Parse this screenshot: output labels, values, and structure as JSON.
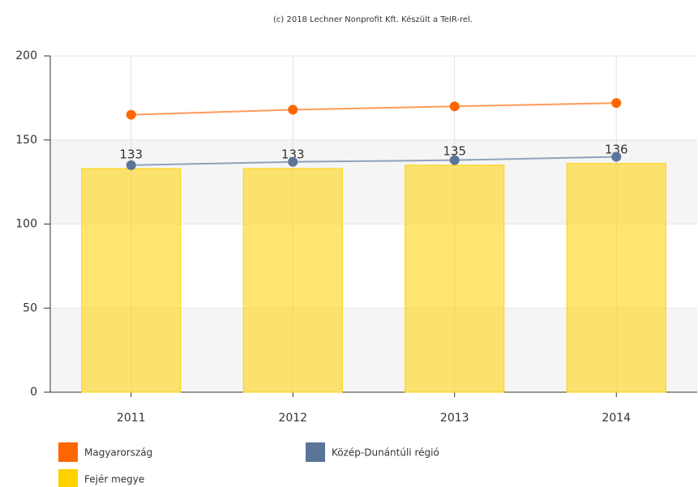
{
  "chart_data": {
    "type": "bar",
    "credit": "(c) 2018 Lechner Nonprofit Kft. Készült a TeIR-rel.",
    "categories": [
      "2011",
      "2012",
      "2013",
      "2014"
    ],
    "series": [
      {
        "name": "Magyarország",
        "type": "line",
        "color": "#ff6600",
        "values": [
          165,
          168,
          170,
          172
        ]
      },
      {
        "name": "Közép-Dunántúli régió",
        "type": "line",
        "color": "#5b7599",
        "values": [
          135,
          137,
          138,
          140
        ]
      },
      {
        "name": "Fejér megye",
        "type": "bar",
        "color": "#ffd200",
        "values": [
          133,
          133,
          135,
          136
        ]
      }
    ],
    "ylim": [
      0,
      200
    ],
    "yticks": [
      0,
      50,
      100,
      150,
      200
    ],
    "grid": true
  }
}
